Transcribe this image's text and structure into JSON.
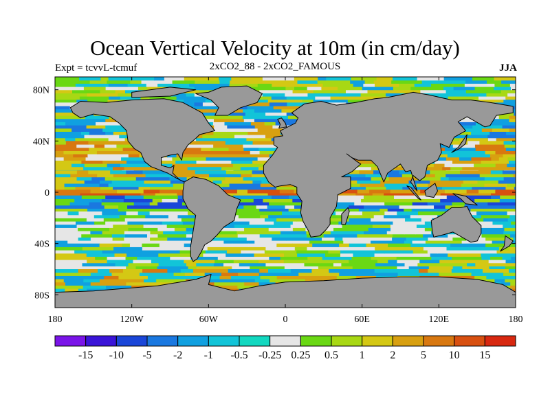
{
  "title": "Ocean Vertical Velocity at 10m (in cm/day)",
  "left_subtitle": "Expt = tcvvL-tcmuf",
  "center_subtitle": "2xCO2_88 - 2xCO2_FAMOUS",
  "right_subtitle": "JJA",
  "lat_ticks": [
    {
      "lat": 80,
      "label": "80N"
    },
    {
      "lat": 40,
      "label": "40N"
    },
    {
      "lat": 0,
      "label": "0"
    },
    {
      "lat": -40,
      "label": "40S"
    },
    {
      "lat": -80,
      "label": "80S"
    }
  ],
  "lon_ticks": [
    {
      "lon": -180,
      "label": "180"
    },
    {
      "lon": -120,
      "label": "120W"
    },
    {
      "lon": -60,
      "label": "60W"
    },
    {
      "lon": 0,
      "label": "0"
    },
    {
      "lon": 60,
      "label": "60E"
    },
    {
      "lon": 120,
      "label": "120E"
    },
    {
      "lon": 180,
      "label": "180"
    }
  ],
  "colorbar": {
    "colors": [
      "#7a14e8",
      "#3a14d8",
      "#1a46d8",
      "#1a78e0",
      "#10a0e0",
      "#12c4d8",
      "#12d8c0",
      "#e6e6e6",
      "#6ad814",
      "#a8d814",
      "#d4c814",
      "#d8a010",
      "#d87810",
      "#d85010",
      "#d82810"
    ],
    "labels": [
      "-15",
      "-10",
      "-5",
      "-2",
      "-1",
      "-0.5",
      "-0.25",
      "0.25",
      "0.5",
      "1",
      "2",
      "5",
      "10",
      "15"
    ]
  },
  "land_color": "#999999"
}
